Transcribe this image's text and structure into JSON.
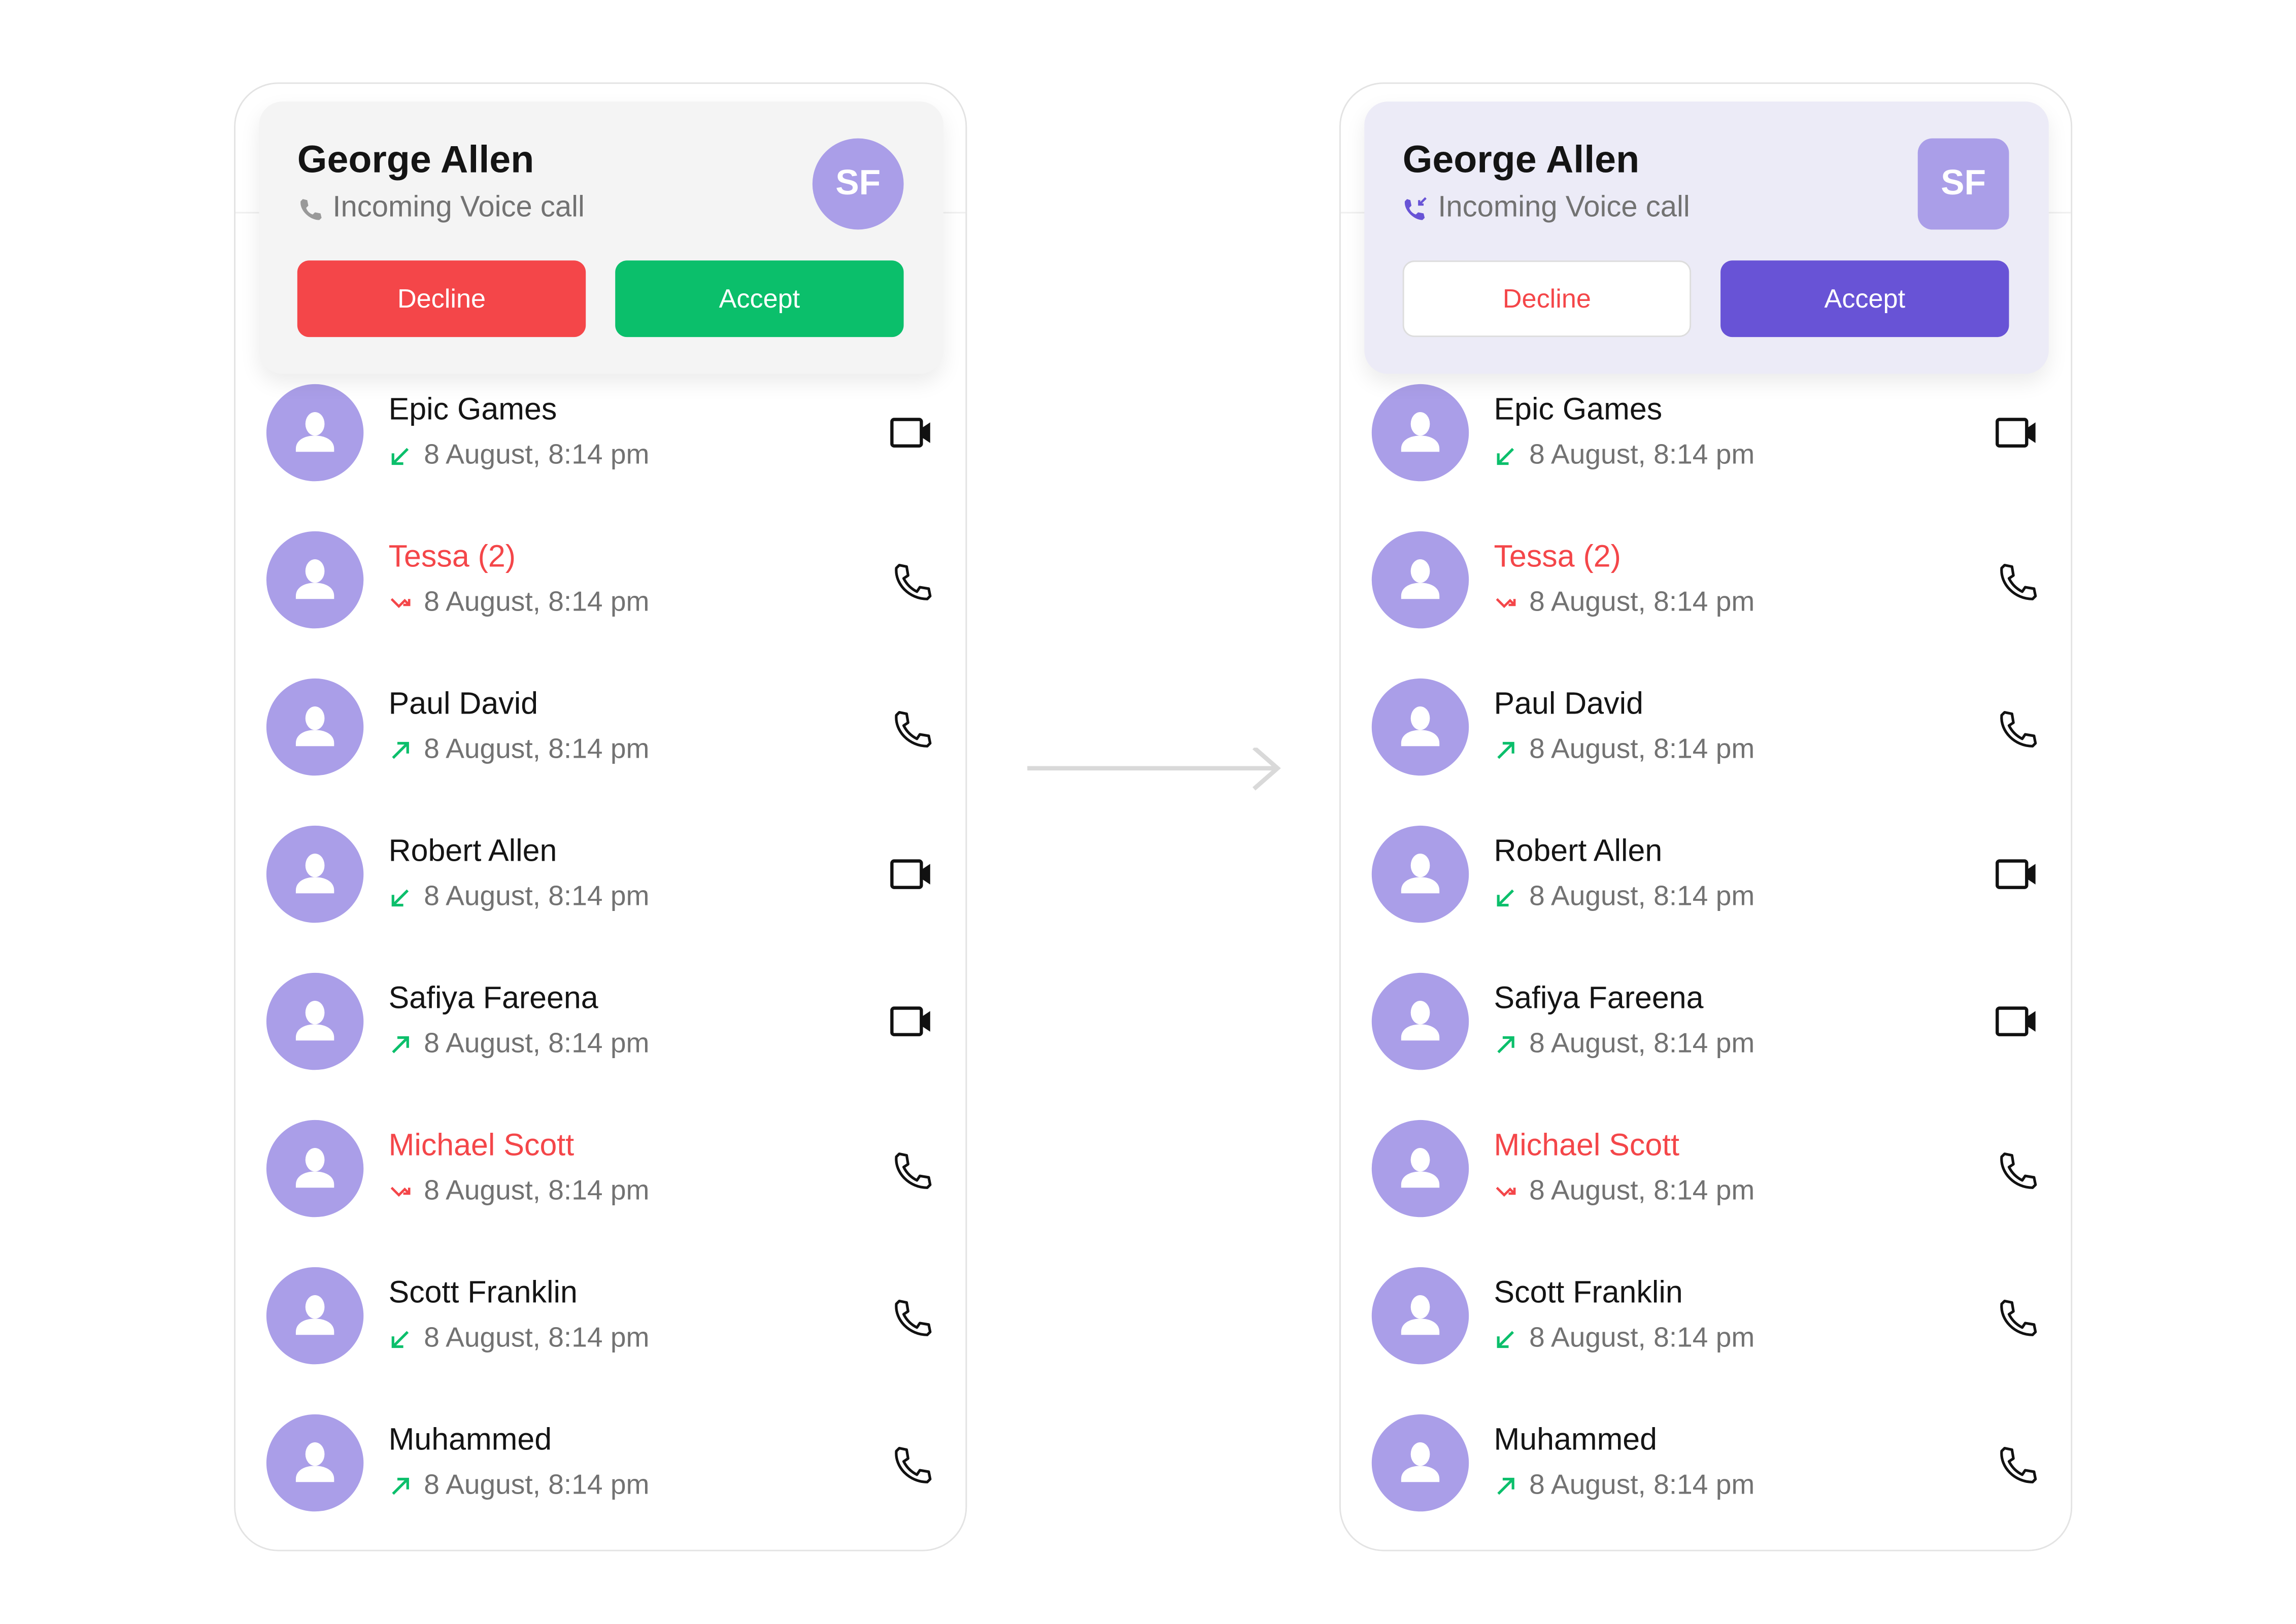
{
  "colors": {
    "avatar": "#aa9ee8",
    "missed": "#f44649",
    "received": "#0bbf6b",
    "accent_before": "#0bbf6b",
    "decline_before": "#f44649",
    "accent_after": "#6853d6",
    "card_before": "#f4f4f4",
    "card_after": "#ecebf7"
  },
  "incoming": {
    "caller": "George Allen",
    "subtitle": "Incoming Voice call",
    "initials": "SF",
    "decline_label": "Decline",
    "accept_label": "Accept"
  },
  "calls": [
    {
      "name": "Epic Games",
      "date": "8 August, 8:14 pm",
      "direction": "incoming",
      "missed": false,
      "type": "video"
    },
    {
      "name": "Tessa (2)",
      "date": "8 August, 8:14 pm",
      "direction": "missed",
      "missed": true,
      "type": "voice"
    },
    {
      "name": "Paul David",
      "date": "8 August, 8:14 pm",
      "direction": "outgoing",
      "missed": false,
      "type": "voice"
    },
    {
      "name": "Robert Allen",
      "date": "8 August, 8:14 pm",
      "direction": "incoming",
      "missed": false,
      "type": "video"
    },
    {
      "name": "Safiya Fareena",
      "date": "8 August, 8:14 pm",
      "direction": "outgoing",
      "missed": false,
      "type": "video"
    },
    {
      "name": "Michael Scott",
      "date": "8 August, 8:14 pm",
      "direction": "missed",
      "missed": true,
      "type": "voice"
    },
    {
      "name": "Scott Franklin",
      "date": "8 August, 8:14 pm",
      "direction": "incoming",
      "missed": false,
      "type": "voice"
    },
    {
      "name": "Muhammed",
      "date": "8 August, 8:14 pm",
      "direction": "outgoing",
      "missed": false,
      "type": "voice"
    }
  ]
}
